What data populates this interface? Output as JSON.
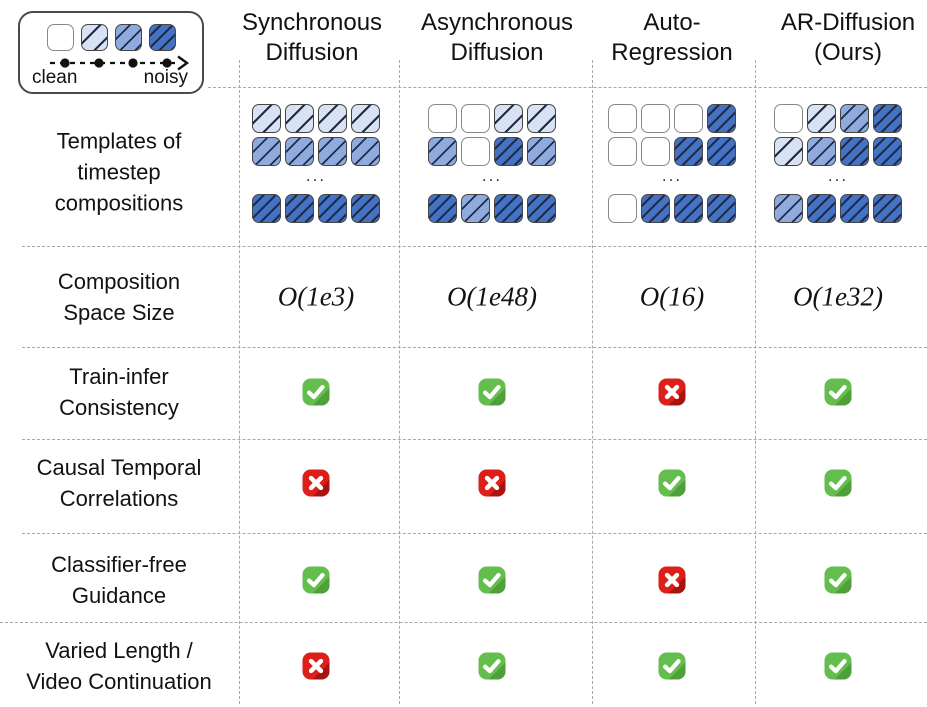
{
  "legend": {
    "clean_label": "clean",
    "noisy_label": "noisy",
    "scale_levels": [
      "clean",
      "light",
      "medium",
      "noisy"
    ]
  },
  "palette": {
    "clean": "#FFFFFF",
    "light": "#D9E2F3",
    "medium": "#8FAADC",
    "noisy": "#4472C4",
    "hatch": "#1F2C49",
    "square_border": "#454545",
    "clean_border": "#888888",
    "check_green": "#63BE4D",
    "check_green_dark": "#4FA03A",
    "cross_red": "#DD1F1A",
    "cross_red_dark": "#A81310",
    "grid_line": "#A8A8A8",
    "text": "#121212"
  },
  "ellipsis": "...",
  "rows": [
    {
      "id": "templates",
      "label_lines": [
        "Templates of",
        "timestep",
        "compositions"
      ]
    },
    {
      "id": "space",
      "label_lines": [
        "Composition",
        "Space Size"
      ]
    },
    {
      "id": "train",
      "label_lines": [
        "Train-infer",
        "Consistency"
      ]
    },
    {
      "id": "causal",
      "label_lines": [
        "Causal Temporal",
        "Correlations"
      ]
    },
    {
      "id": "cfg",
      "label_lines": [
        "Classifier-free",
        "Guidance"
      ]
    },
    {
      "id": "varied",
      "label_lines": [
        "Varied Length /",
        "Video Continuation"
      ]
    }
  ],
  "columns": [
    {
      "id": "sync",
      "header_lines": [
        "Synchronous",
        "Diffusion"
      ],
      "template": {
        "rows": [
          [
            "light",
            "light",
            "light",
            "light"
          ],
          [
            "medium",
            "medium",
            "medium",
            "medium"
          ]
        ],
        "final_row": [
          "noisy",
          "noisy",
          "noisy",
          "noisy"
        ]
      },
      "space_size": "O(1e3)",
      "features": {
        "train": "yes",
        "causal": "no",
        "cfg": "yes",
        "varied": "no"
      }
    },
    {
      "id": "async",
      "header_lines": [
        "Asynchronous",
        "Diffusion"
      ],
      "template": {
        "rows": [
          [
            "clean",
            "clean",
            "light",
            "light"
          ],
          [
            "medium",
            "clean",
            "noisy",
            "medium"
          ]
        ],
        "final_row": [
          "noisy",
          "medium",
          "noisy",
          "noisy"
        ]
      },
      "space_size": "O(1e48)",
      "features": {
        "train": "yes",
        "causal": "no",
        "cfg": "yes",
        "varied": "yes"
      }
    },
    {
      "id": "autoregression",
      "header_lines": [
        "Auto-",
        "Regression"
      ],
      "template": {
        "rows": [
          [
            "clean",
            "clean",
            "clean",
            "noisy"
          ],
          [
            "clean",
            "clean",
            "noisy",
            "noisy"
          ]
        ],
        "final_row": [
          "clean",
          "noisy",
          "noisy",
          "noisy"
        ]
      },
      "space_size": "O(16)",
      "features": {
        "train": "no",
        "causal": "yes",
        "cfg": "no",
        "varied": "yes"
      }
    },
    {
      "id": "ours",
      "header_lines": [
        "AR-Diffusion",
        "(Ours)"
      ],
      "template": {
        "rows": [
          [
            "clean",
            "light",
            "medium",
            "noisy"
          ],
          [
            "light",
            "medium",
            "noisy",
            "noisy"
          ]
        ],
        "final_row": [
          "medium",
          "noisy",
          "noisy",
          "noisy"
        ]
      },
      "space_size": "O(1e32)",
      "features": {
        "train": "yes",
        "causal": "yes",
        "cfg": "yes",
        "varied": "yes"
      }
    }
  ]
}
